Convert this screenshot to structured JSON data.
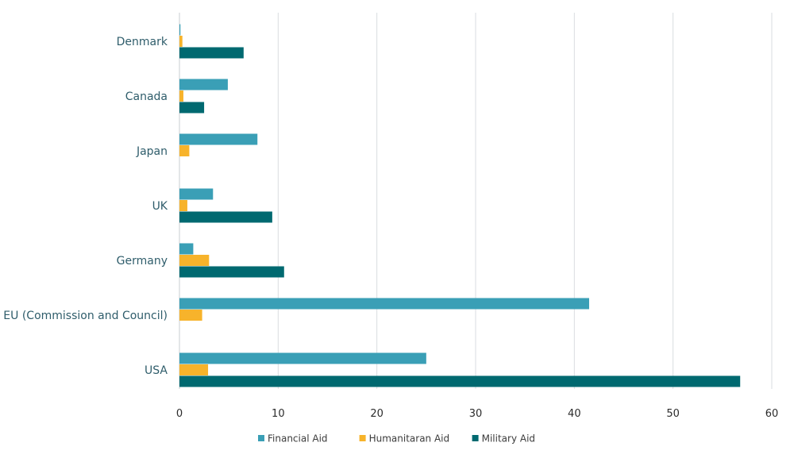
{
  "chart_data": {
    "type": "bar",
    "orientation": "horizontal",
    "categories": [
      "Denmark",
      "Canada",
      "Japan",
      "UK",
      "Germany",
      "EU (Commission and Council)",
      "USA"
    ],
    "series": [
      {
        "name": "Financial Aid",
        "color": "#3a9fb6",
        "values": [
          0.1,
          4.9,
          7.9,
          3.4,
          1.4,
          41.5,
          25.0
        ]
      },
      {
        "name": "Humanitaran Aid",
        "color": "#f7b32b",
        "values": [
          0.3,
          0.4,
          1.0,
          0.8,
          3.0,
          2.3,
          2.9
        ]
      },
      {
        "name": "Military Aid",
        "color": "#006970",
        "values": [
          6.5,
          2.5,
          0.0,
          9.4,
          10.6,
          0.0,
          56.8
        ]
      }
    ],
    "xlim": [
      0,
      60
    ],
    "xticks": [
      "0",
      "10",
      "20",
      "30",
      "40",
      "50",
      "60"
    ],
    "grid": "vertical",
    "legend": "bottom-center",
    "title": "",
    "xlabel": "",
    "ylabel": ""
  }
}
